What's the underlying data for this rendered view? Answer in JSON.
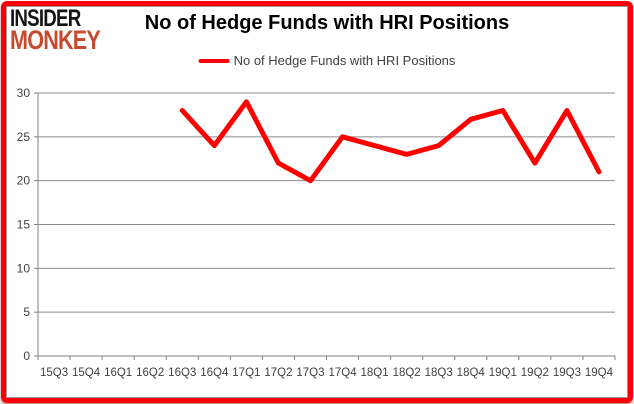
{
  "logo": {
    "line1": "INSIDER",
    "line2": "MONKEY"
  },
  "header": {
    "title": "No of Hedge Funds with HRI Positions"
  },
  "legend": {
    "label": "No of Hedge Funds with HRI Positions"
  },
  "colors": {
    "series": "#ff0000",
    "frame": "#fb0007",
    "logo_line1": "#161313",
    "logo_line2": "#c64a2f",
    "grid": "#8c8c8c",
    "axis": "#808080",
    "tick_label": "#3f3f3f"
  },
  "chart_data": {
    "type": "line",
    "title": "No of Hedge Funds with HRI Positions",
    "categories": [
      "15Q3",
      "15Q4",
      "16Q1",
      "16Q2",
      "16Q3",
      "16Q4",
      "17Q1",
      "17Q2",
      "17Q3",
      "17Q4",
      "18Q1",
      "18Q2",
      "18Q3",
      "18Q4",
      "19Q1",
      "19Q2",
      "19Q3",
      "19Q4"
    ],
    "series": [
      {
        "name": "No of Hedge Funds with HRI Positions",
        "color": "#ff0000",
        "values": [
          null,
          null,
          null,
          null,
          28,
          24,
          29,
          22,
          20,
          25,
          24,
          23,
          24,
          27,
          28,
          22,
          28,
          21
        ]
      }
    ],
    "xlabel": "",
    "ylabel": "",
    "ylim": [
      0,
      30
    ],
    "ytick_step": 5,
    "grid": true,
    "legend_position": "top"
  }
}
